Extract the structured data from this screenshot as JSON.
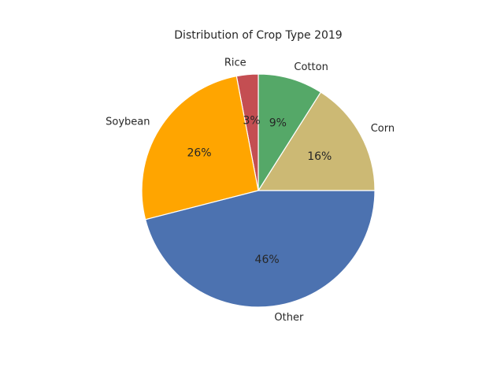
{
  "chart_data": {
    "type": "pie",
    "title": "Distribution of Crop Type 2019",
    "start_angle_deg": 0,
    "direction": "counterclockwise",
    "slices": [
      {
        "label": "Corn",
        "value": 16,
        "pct_label": "16%",
        "color": "#ccb974"
      },
      {
        "label": "Cotton",
        "value": 9,
        "pct_label": "9%",
        "color": "#55a868"
      },
      {
        "label": "Rice",
        "value": 3,
        "pct_label": "3%",
        "color": "#c44e52"
      },
      {
        "label": "Soybean",
        "value": 26,
        "pct_label": "26%",
        "color": "#ffa500"
      },
      {
        "label": "Other",
        "value": 46,
        "pct_label": "46%",
        "color": "#4c72b0"
      }
    ]
  }
}
